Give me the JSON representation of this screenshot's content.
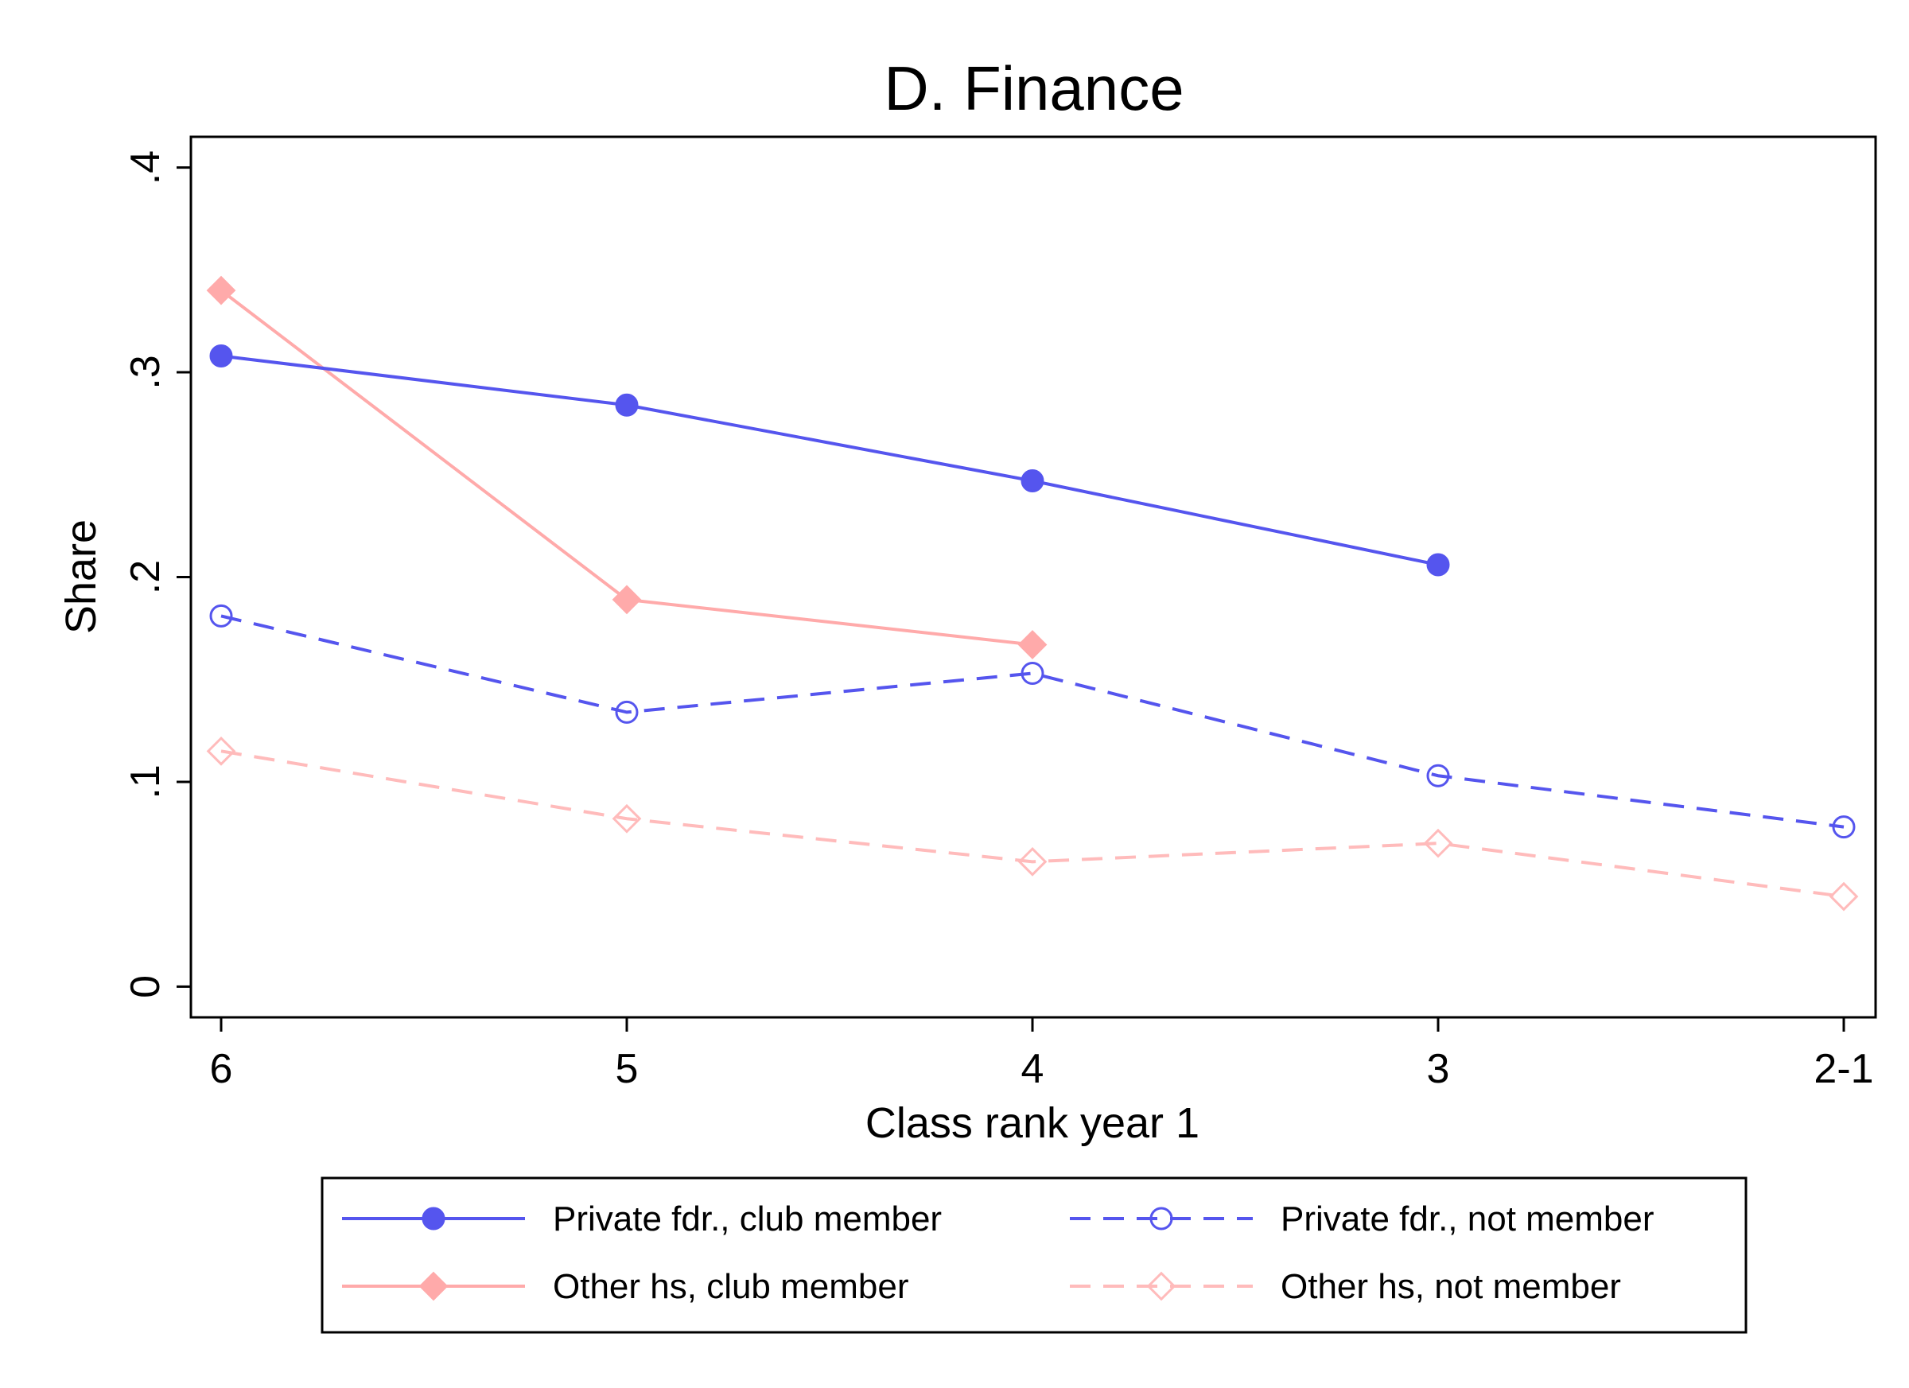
{
  "chart_data": {
    "type": "line",
    "title": "D. Finance",
    "xlabel": "Class rank year 1",
    "ylabel": "Share",
    "categories": [
      "6",
      "5",
      "4",
      "3",
      "2-1"
    ],
    "yticks": [
      {
        "value": 0,
        "label": "0"
      },
      {
        "value": 0.1,
        "label": ".1"
      },
      {
        "value": 0.2,
        "label": ".2"
      },
      {
        "value": 0.3,
        "label": ".3"
      },
      {
        "value": 0.4,
        "label": ".4"
      }
    ],
    "ylim": [
      -0.015,
      0.415
    ],
    "grid": false,
    "legend_position": "bottom",
    "series": [
      {
        "name": "Private fdr., club member",
        "values": [
          0.308,
          0.284,
          0.247,
          0.206,
          null
        ],
        "color": "#5555ee",
        "marker": "circle",
        "filled": true,
        "dashed": false
      },
      {
        "name": "Private fdr., not member",
        "values": [
          0.181,
          0.134,
          0.153,
          0.103,
          0.078
        ],
        "color": "#5555ee",
        "marker": "circle",
        "filled": false,
        "dashed": true
      },
      {
        "name": "Other hs, club member",
        "values": [
          0.34,
          0.189,
          0.167,
          null,
          null
        ],
        "color": "#ffaaaa",
        "marker": "diamond",
        "filled": true,
        "dashed": false
      },
      {
        "name": "Other hs, not member",
        "values": [
          0.115,
          0.082,
          0.061,
          0.07,
          0.044
        ],
        "color": "#ffbbbb",
        "marker": "diamond",
        "filled": false,
        "dashed": true
      }
    ]
  }
}
